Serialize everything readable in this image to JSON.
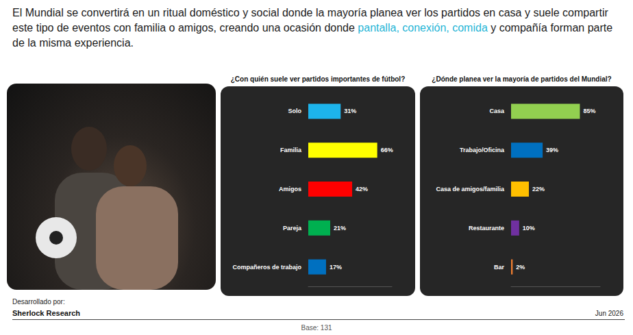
{
  "headline": [
    {
      "text": "El Mundial se convertirá en un ritual doméstico y social donde la mayoría planea ver los partidos en casa y suele compartir este tipo de eventos con familia o amigos, creando una ocasión donde "
    },
    {
      "text": "pantalla, conexión, comida",
      "color": "#1fb5d6"
    },
    {
      "text": " y compañía forman parte de la misma experiencia."
    }
  ],
  "chart_data": [
    {
      "type": "bar",
      "title": "¿Con quién suele ver partidos importantes de fútbol?",
      "orientation": "horizontal",
      "categories": [
        "Solo",
        "Familia",
        "Amigos",
        "Pareja",
        "Compañeros de trabajo"
      ],
      "values": [
        31,
        66,
        42,
        21,
        17
      ],
      "value_labels": [
        "31%",
        "66%",
        "42%",
        "21%",
        "17%"
      ],
      "colors": [
        "#1db4ec",
        "#ffff00",
        "#ff0000",
        "#00b050",
        "#0070c0"
      ],
      "xlim": [
        0,
        80
      ],
      "data_labels": true,
      "tick_labels": "y",
      "grid": false
    },
    {
      "type": "bar",
      "title": "¿Dónde planea ver la mayoría de partidos del Mundial?",
      "orientation": "horizontal",
      "categories": [
        "Casa",
        "Trabajo/Oficina",
        "Casa de amigos/familia",
        "Restaurante",
        "Bar"
      ],
      "values": [
        85,
        39,
        22,
        10,
        2
      ],
      "value_labels": [
        "85%",
        "39%",
        "22%",
        "10%",
        "2%"
      ],
      "colors": [
        "#92d050",
        "#0070c0",
        "#ffc000",
        "#7030a0",
        "#ed7d31"
      ],
      "xlim": [
        0,
        110
      ],
      "data_labels": true,
      "tick_labels": "y",
      "grid": false
    }
  ],
  "footer": {
    "developed_by": "Desarrollado por:",
    "developer": "Sherlock Research",
    "date": "Jun 2026",
    "base": "Base: 131"
  }
}
